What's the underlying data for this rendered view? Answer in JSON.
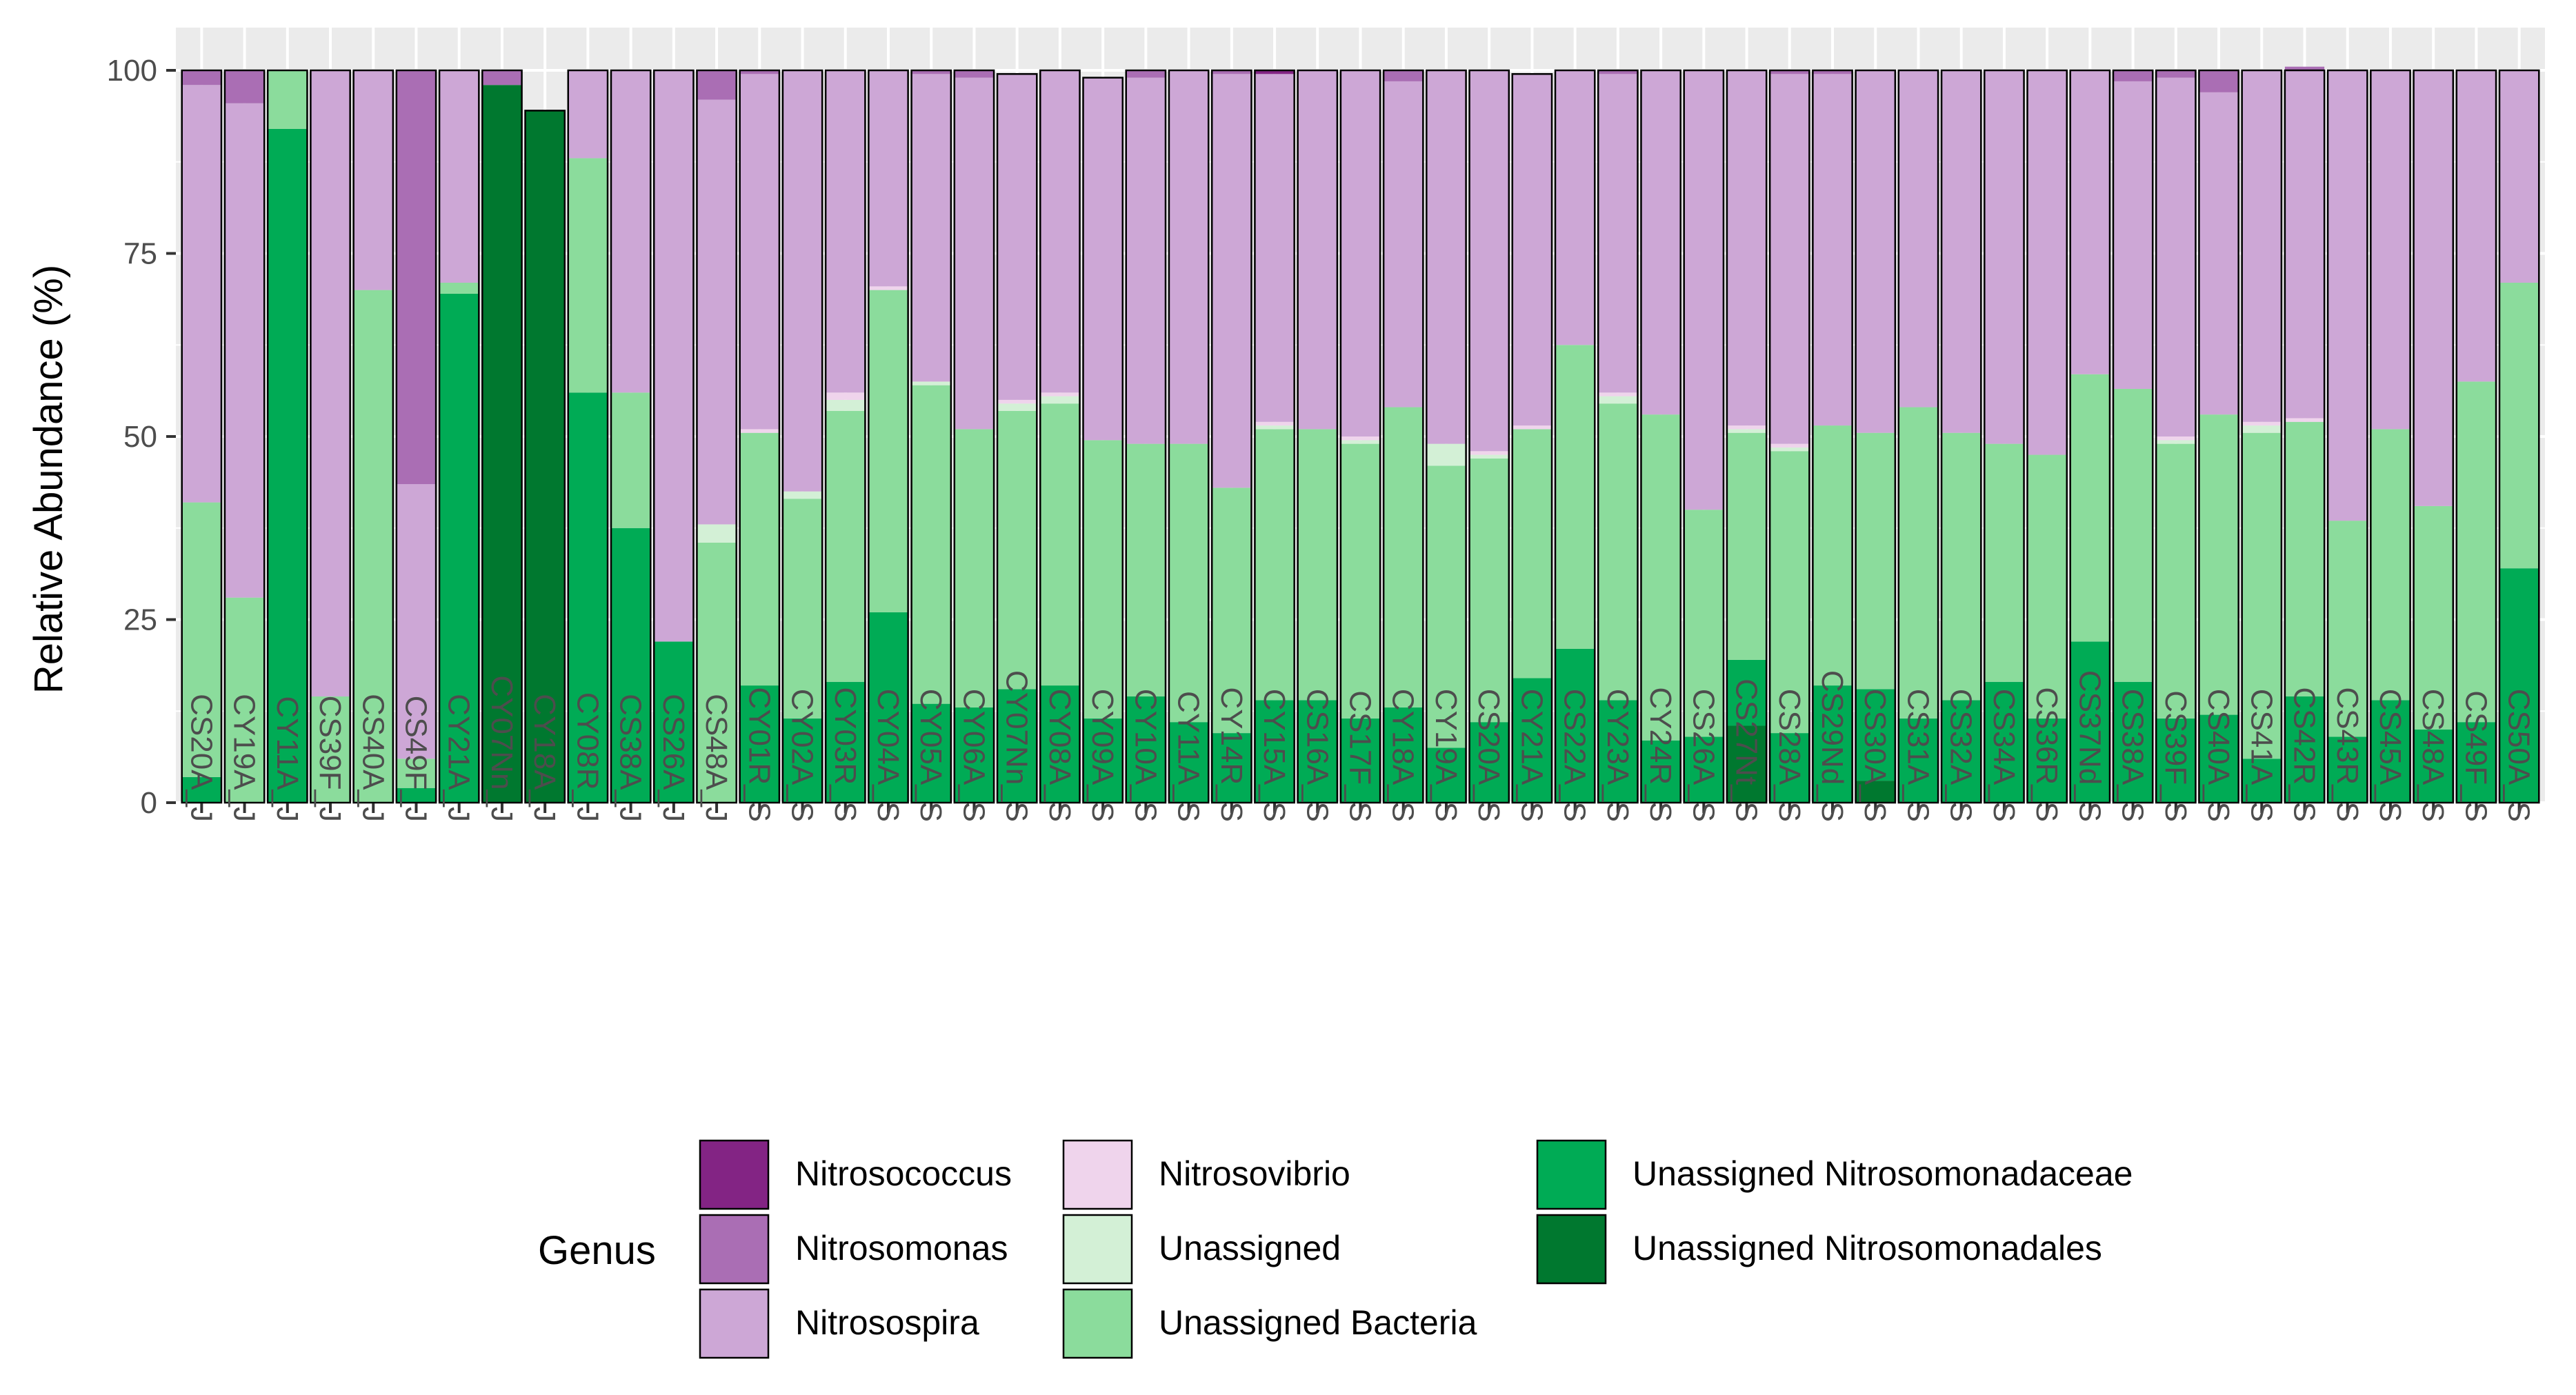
{
  "chart_data": {
    "type": "bar",
    "stacked": true,
    "title": "",
    "xlabel": "",
    "ylabel": "Relative Abundance (%)",
    "ylim": [
      0,
      100
    ],
    "yticks": [
      "0",
      "25",
      "50",
      "75",
      "100"
    ],
    "categories": [
      "CS20A_J",
      "CY19A_J",
      "CY11A_J",
      "CS39F_J",
      "CS40A_J",
      "CS49F_J",
      "CY21A_J",
      "CY07Nn_J",
      "CY18A_J",
      "CY08R_J",
      "CS38A_J",
      "CS26A_J",
      "CS48A_J",
      "CY01R_S",
      "CY02A_S",
      "CY03R_S",
      "CY04A_S",
      "CY05A_S",
      "CY06A_S",
      "CY07Nn_S",
      "CY08A_S",
      "CY09A_S",
      "CY10A_S",
      "CY11A_S",
      "CY14R_S",
      "CY15A_S",
      "CS16A_S",
      "CS17F_S",
      "CY18A_S",
      "CY19A_S",
      "CS20A_S",
      "CY21A_S",
      "CS22A_S",
      "CY23A_S",
      "CY24R_S",
      "CS26A_S",
      "CS27Nt_S",
      "CS28A_S",
      "CS29Nd_S",
      "CS30A_S",
      "CS31A_S",
      "CS32A_S",
      "CS34A_S",
      "CS36R_S",
      "CS37Nd_S",
      "CS38A_S",
      "CS39F_S",
      "CS40A_S",
      "CS41A_S",
      "CS42R_S",
      "CS43R_S",
      "CS45A_S",
      "CS48A_S",
      "CS49F_S",
      "CS50A_S"
    ],
    "series": [
      {
        "name": "Unassigned Nitrosomonadales",
        "color": "#00782f",
        "values": [
          0,
          0,
          0,
          0,
          0,
          0,
          0,
          98,
          94.5,
          0,
          0,
          0,
          0,
          0,
          0,
          0,
          0,
          0,
          0,
          0,
          0,
          0,
          0,
          0,
          0,
          0,
          0,
          0,
          0,
          0,
          0,
          0,
          0,
          0,
          0,
          0,
          10.5,
          0,
          0,
          3,
          0,
          0,
          0,
          0,
          0,
          0,
          0,
          0,
          0,
          0,
          0,
          0,
          0,
          0,
          0
        ]
      },
      {
        "name": "Unassigned Nitrosomonadaceae",
        "color": "#00ab55",
        "values": [
          3.5,
          0,
          92,
          0,
          0,
          2,
          69.5,
          0,
          0,
          56,
          37.5,
          22,
          0,
          16,
          11.5,
          16.5,
          26,
          13.5,
          13,
          15.5,
          16,
          11.5,
          14.5,
          11,
          9.5,
          14,
          14,
          11.5,
          13,
          7.5,
          11,
          17,
          21,
          14,
          8.5,
          9,
          9,
          9.5,
          16,
          12.5,
          11.5,
          14,
          16.5,
          11.5,
          22,
          16.5,
          11.5,
          12,
          6,
          14.5,
          9,
          14,
          10,
          11,
          32
        ]
      },
      {
        "name": "Unassigned Bacteria",
        "color": "#8bdc9c",
        "values": [
          37.5,
          28,
          8,
          14.5,
          70,
          4,
          1.5,
          0,
          0,
          32,
          18.5,
          0,
          35.5,
          34.5,
          30,
          37,
          44,
          43.5,
          38,
          38,
          38.5,
          38,
          34.5,
          38,
          33.5,
          37,
          37,
          37.5,
          41,
          38.5,
          36,
          34,
          41.5,
          40.5,
          44.5,
          31,
          31,
          38.5,
          35.5,
          35,
          42.5,
          36.5,
          32.5,
          36,
          36.5,
          40,
          37.5,
          41,
          44.5,
          37.5,
          29.5,
          37,
          30.5,
          46.5,
          39
        ]
      },
      {
        "name": "Unassigned",
        "color": "#d3f0d6",
        "values": [
          0,
          0,
          0,
          0,
          0,
          0,
          0,
          0,
          0,
          0,
          0,
          0,
          2.5,
          0,
          1,
          1.5,
          0,
          0.5,
          0,
          1,
          1,
          0,
          0,
          0,
          0,
          0.5,
          0,
          0.5,
          0,
          3,
          0.5,
          0,
          0,
          1,
          0,
          0,
          0.5,
          0.5,
          0,
          0,
          0,
          0,
          0,
          0,
          0,
          0,
          0.5,
          0,
          1,
          0,
          0,
          0,
          0,
          0,
          0
        ]
      },
      {
        "name": "Nitrosovibrio",
        "color": "#efd4ec",
        "values": [
          0,
          0,
          0,
          0,
          0,
          0,
          0,
          0,
          0,
          0,
          0,
          0,
          0,
          0.5,
          0,
          1,
          0.5,
          0,
          0,
          0.5,
          0.5,
          0,
          0,
          0,
          0,
          0.5,
          0,
          0.5,
          0,
          0,
          0.5,
          0.5,
          0,
          0.5,
          0,
          0,
          0.5,
          0.5,
          0,
          0,
          0,
          0,
          0,
          0,
          0,
          0,
          0.5,
          0,
          0.5,
          0.5,
          0,
          0,
          0,
          0,
          0
        ]
      },
      {
        "name": "Nitrosospira",
        "color": "#cda7d6",
        "values": [
          57,
          67.5,
          0,
          85.5,
          30,
          37.5,
          29,
          0,
          0,
          12,
          44,
          78,
          58,
          48.5,
          57.5,
          44,
          29.5,
          42,
          48,
          44.5,
          44,
          49.5,
          50,
          51,
          56.5,
          47.5,
          49,
          50,
          44.5,
          51,
          52,
          48,
          37.5,
          43.5,
          47,
          60,
          48.5,
          50.5,
          48,
          49.5,
          46,
          49.5,
          51,
          52.5,
          41.5,
          42,
          49,
          44,
          48,
          47.5,
          61.5,
          49,
          59.5,
          42.5,
          29
        ]
      },
      {
        "name": "Nitrosomonas",
        "color": "#aa6eb4",
        "values": [
          2,
          4.5,
          0,
          0,
          0,
          56.5,
          0,
          2,
          0,
          0,
          0,
          0,
          4,
          0.5,
          0,
          0,
          0,
          0.5,
          1,
          0,
          0,
          0,
          1,
          0,
          0.5,
          0,
          0,
          0,
          1.5,
          0,
          0,
          0,
          0,
          0.5,
          0,
          0,
          0,
          0.5,
          0.5,
          0,
          0,
          0,
          0,
          0,
          0,
          1.5,
          1,
          3,
          0,
          0.5,
          0,
          0,
          0,
          0,
          0
        ]
      },
      {
        "name": "Nitrosococcus",
        "color": "#832484",
        "values": [
          0,
          0,
          0,
          0,
          0,
          0,
          0,
          0,
          0,
          0,
          0,
          0,
          0,
          0,
          0,
          0,
          0,
          0,
          0,
          0,
          0,
          0,
          0,
          0,
          0,
          0.5,
          0,
          0,
          0,
          0,
          0,
          0,
          0,
          0,
          0,
          0,
          0,
          0,
          0,
          0,
          0,
          0,
          0,
          0,
          0,
          0,
          0,
          0,
          0,
          0,
          0,
          0,
          0,
          0,
          0
        ]
      }
    ],
    "legend": {
      "title": "Genus",
      "position": "bottom",
      "entries": [
        {
          "label": "Nitrosococcus",
          "color": "#832484"
        },
        {
          "label": "Nitrosomonas",
          "color": "#aa6eb4"
        },
        {
          "label": "Nitrosospira",
          "color": "#cda7d6"
        },
        {
          "label": "Nitrosovibrio",
          "color": "#efd4ec"
        },
        {
          "label": "Unassigned",
          "color": "#d3f0d6"
        },
        {
          "label": "Unassigned Bacteria",
          "color": "#8bdc9c"
        },
        {
          "label": "Unassigned Nitrosomonadaceae",
          "color": "#00ab55"
        },
        {
          "label": "Unassigned Nitrosomonadales",
          "color": "#00782f"
        }
      ]
    },
    "grid": true,
    "panel_background": "#ebebeb",
    "grid_color": "#ffffff"
  }
}
